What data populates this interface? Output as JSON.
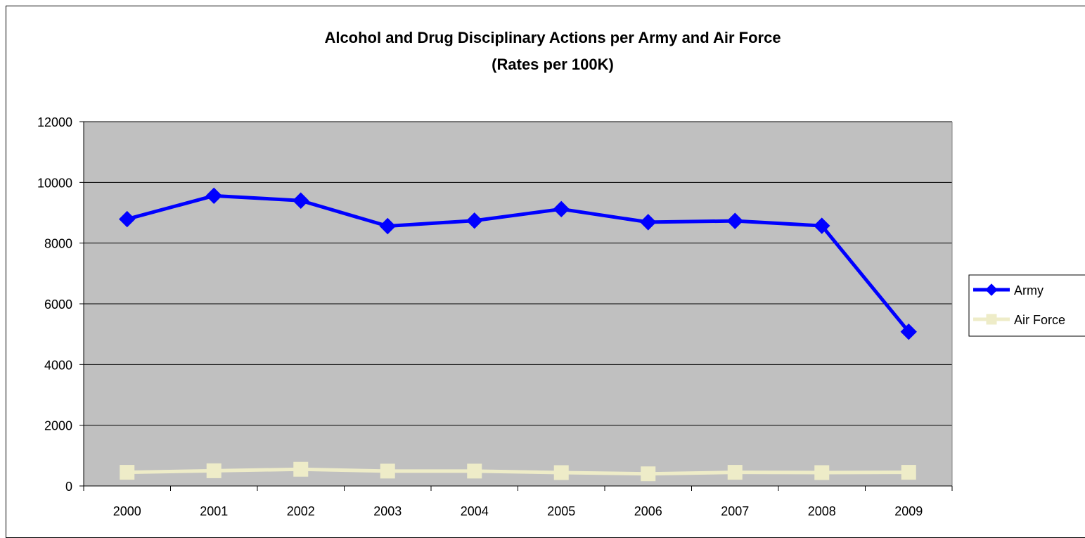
{
  "chart_data": {
    "type": "line",
    "title": "Alcohol and Drug Disciplinary Actions per Army and Air Force",
    "subtitle": "(Rates per 100K)",
    "xlabel": "",
    "ylabel": "",
    "categories": [
      "2000",
      "2001",
      "2002",
      "2003",
      "2004",
      "2005",
      "2006",
      "2007",
      "2008",
      "2009"
    ],
    "ylim": [
      0,
      12000
    ],
    "yticks": [
      0,
      2000,
      4000,
      6000,
      8000,
      10000,
      12000
    ],
    "grid": true,
    "legend_position": "right",
    "plot_background": "#c0c0c0",
    "series": [
      {
        "name": "Army",
        "color": "#0000ff",
        "marker": "diamond",
        "values": [
          8790,
          9560,
          9400,
          8560,
          8740,
          9120,
          8690,
          8730,
          8570,
          5080
        ]
      },
      {
        "name": "Air Force",
        "color": "#eeecc8",
        "marker": "square",
        "values": [
          450,
          500,
          550,
          490,
          490,
          440,
          400,
          450,
          440,
          450
        ]
      }
    ]
  }
}
